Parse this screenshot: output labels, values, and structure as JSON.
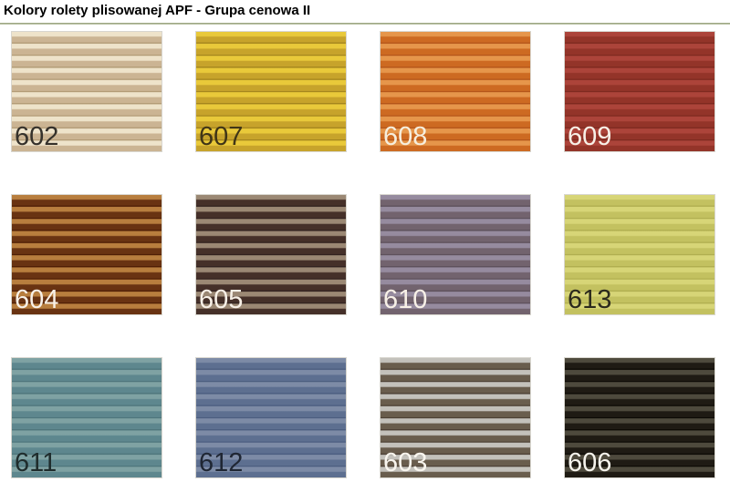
{
  "page": {
    "title": "Kolory rolety plisowanej APF - Grupa cenowa II"
  },
  "divider_color_top": "#8f9a74",
  "divider_color_bottom": "#ccd2ba",
  "swatches": [
    {
      "code": "602",
      "stripe_light": "#eee3ca",
      "stripe_dark": "#cbb493",
      "stripe_edge": "#b39c77",
      "label_color": "#35312b"
    },
    {
      "code": "607",
      "stripe_light": "#e9c93a",
      "stripe_dark": "#c7a32b",
      "stripe_edge": "#a5861e",
      "label_color": "#403517"
    },
    {
      "code": "608",
      "stripe_light": "#e6964b",
      "stripe_dark": "#cd6a22",
      "stripe_edge": "#b5561a",
      "label_color": "#f6eedd"
    },
    {
      "code": "609",
      "stripe_light": "#ac443a",
      "stripe_dark": "#933429",
      "stripe_edge": "#7e2a20",
      "label_color": "#f7f0e7"
    },
    {
      "code": "604",
      "stripe_light": "#b87e3e",
      "stripe_dark": "#693312",
      "stripe_edge": "#501f06",
      "label_color": "#f7f0e7"
    },
    {
      "code": "605",
      "stripe_light": "#9b8874",
      "stripe_dark": "#453029",
      "stripe_edge": "#332320",
      "label_color": "#f7f0e7"
    },
    {
      "code": "610",
      "stripe_light": "#968b9f",
      "stripe_dark": "#72636e",
      "stripe_edge": "#5e515c",
      "label_color": "#f7f0e7"
    },
    {
      "code": "613",
      "stripe_light": "#d7d577",
      "stripe_dark": "#c3c160",
      "stripe_edge": "#b0ae50",
      "label_color": "#2c2a1d"
    },
    {
      "code": "611",
      "stripe_light": "#7fa2a3",
      "stripe_dark": "#5e878e",
      "stripe_edge": "#4f767c",
      "label_color": "#1f2c2c"
    },
    {
      "code": "612",
      "stripe_light": "#7d8ba6",
      "stripe_dark": "#5d6f90",
      "stripe_edge": "#4c5e80",
      "label_color": "#1f2633"
    },
    {
      "code": "603",
      "stripe_light": "#c3c1bb",
      "stripe_dark": "#695d4d",
      "stripe_edge": "#4e4236",
      "label_color": "#f8f5ee"
    },
    {
      "code": "606",
      "stripe_light": "#4e4a3d",
      "stripe_dark": "#1f1b14",
      "stripe_edge": "#0e0b06",
      "label_color": "#f5f3ec"
    }
  ]
}
